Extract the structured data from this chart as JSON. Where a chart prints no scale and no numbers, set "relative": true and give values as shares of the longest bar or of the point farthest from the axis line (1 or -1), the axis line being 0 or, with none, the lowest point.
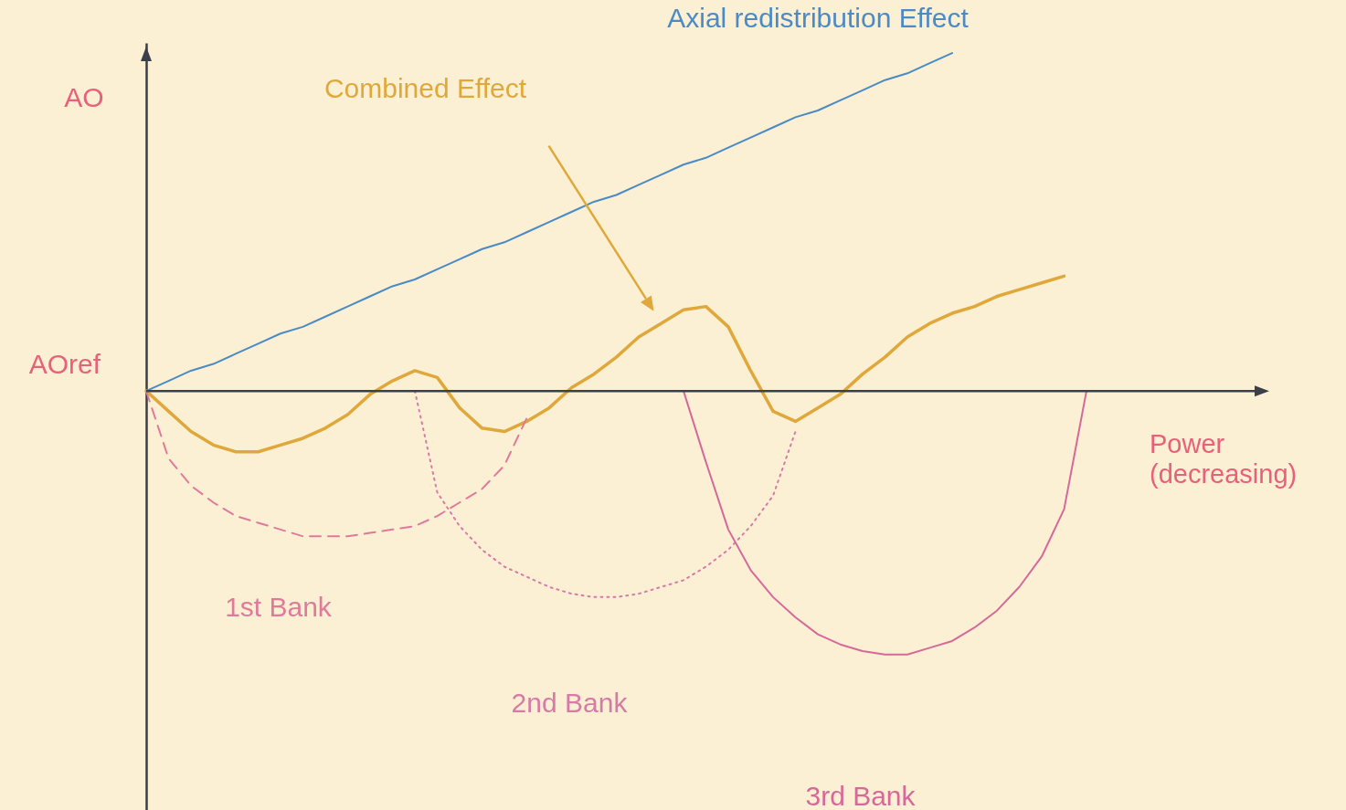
{
  "chart_data": {
    "type": "line",
    "relative": true,
    "xlabel": "Power (decreasing)",
    "ylabel": "AO",
    "tick_labels": false,
    "grid": false,
    "categories": [
      null,
      null,
      null,
      null,
      null,
      null,
      null,
      null,
      null,
      null,
      null,
      null,
      null,
      null,
      null,
      null,
      null,
      null,
      null,
      null,
      null,
      null,
      null,
      null,
      null,
      null,
      null,
      null,
      null,
      null,
      null,
      null,
      null,
      null,
      null,
      null,
      null,
      null,
      null,
      null,
      null,
      null,
      null,
      null,
      null,
      null,
      null,
      null,
      null,
      null,
      null
    ],
    "ref_lines": [
      {
        "axis": "y",
        "value": 0,
        "label": "AOref",
        "color": "#3a3f4a"
      }
    ],
    "series": [
      {
        "name": "Axial redistribution Effect",
        "color": "#4a8ac6",
        "line_style": "solid",
        "values": [
          0,
          0.03,
          0.06,
          0.08,
          0.11,
          0.14,
          0.17,
          0.19,
          0.22,
          0.25,
          0.28,
          0.31,
          0.33,
          0.36,
          0.39,
          0.42,
          0.44,
          0.47,
          0.5,
          0.53,
          0.56,
          0.58,
          0.61,
          0.64,
          0.67,
          0.69,
          0.72,
          0.75,
          0.78,
          0.81,
          0.83,
          0.86,
          0.89,
          0.92,
          0.94,
          0.97,
          1,
          null,
          null,
          null,
          null,
          null,
          null,
          null,
          null,
          null,
          null,
          null,
          null,
          null,
          null
        ]
      },
      {
        "name": "Combined Effect",
        "color": "#e0a83a",
        "line_style": "solid",
        "values": [
          0,
          -0.06,
          -0.12,
          -0.16,
          -0.18,
          -0.18,
          -0.16,
          -0.14,
          -0.11,
          -0.07,
          -0.01,
          0.03,
          0.06,
          0.04,
          -0.05,
          -0.11,
          -0.12,
          -0.09,
          -0.05,
          0.01,
          0.05,
          0.1,
          0.16,
          0.2,
          0.24,
          0.25,
          0.19,
          0.06,
          -0.06,
          -0.09,
          -0.05,
          -0.01,
          0.05,
          0.1,
          0.16,
          0.2,
          0.23,
          0.25,
          0.28,
          0.3,
          0.32,
          0.34,
          null,
          null,
          null,
          null,
          null,
          null,
          null,
          null,
          null
        ]
      },
      {
        "name": "1st Bank",
        "color": "#e07a9a",
        "line_style": "dashed",
        "values": [
          0,
          -0.2,
          -0.28,
          -0.33,
          -0.37,
          -0.39,
          -0.41,
          -0.43,
          -0.43,
          -0.43,
          -0.42,
          -0.41,
          -0.4,
          -0.37,
          -0.33,
          -0.29,
          -0.22,
          -0.08,
          null,
          null,
          null,
          null,
          null,
          null,
          null,
          null,
          null,
          null,
          null,
          null,
          null,
          null,
          null,
          null,
          null,
          null,
          null,
          null,
          null,
          null,
          null,
          null,
          null,
          null,
          null,
          null,
          null,
          null,
          null,
          null,
          null
        ]
      },
      {
        "name": "2nd Bank",
        "color": "#d87aa8",
        "line_style": "dotted",
        "values": [
          null,
          null,
          null,
          null,
          null,
          null,
          null,
          null,
          null,
          null,
          null,
          null,
          0,
          -0.3,
          -0.4,
          -0.47,
          -0.52,
          -0.55,
          -0.58,
          -0.6,
          -0.61,
          -0.61,
          -0.6,
          -0.58,
          -0.56,
          -0.52,
          -0.47,
          -0.4,
          -0.31,
          -0.12,
          null,
          null,
          null,
          null,
          null,
          null,
          null,
          null,
          null,
          null,
          null,
          null,
          null,
          null,
          null,
          null,
          null,
          null,
          null,
          null,
          null
        ]
      },
      {
        "name": "3rd Bank",
        "color": "#d6689a",
        "line_style": "solid",
        "values": [
          null,
          null,
          null,
          null,
          null,
          null,
          null,
          null,
          null,
          null,
          null,
          null,
          null,
          null,
          null,
          null,
          null,
          null,
          null,
          null,
          null,
          null,
          null,
          null,
          0,
          -0.21,
          -0.41,
          -0.53,
          -0.61,
          -0.67,
          -0.72,
          -0.75,
          -0.77,
          -0.78,
          -0.78,
          -0.76,
          -0.74,
          -0.7,
          -0.65,
          -0.58,
          -0.49,
          -0.35,
          0,
          null,
          null,
          null,
          null,
          null,
          null,
          null,
          null
        ]
      }
    ]
  }
}
